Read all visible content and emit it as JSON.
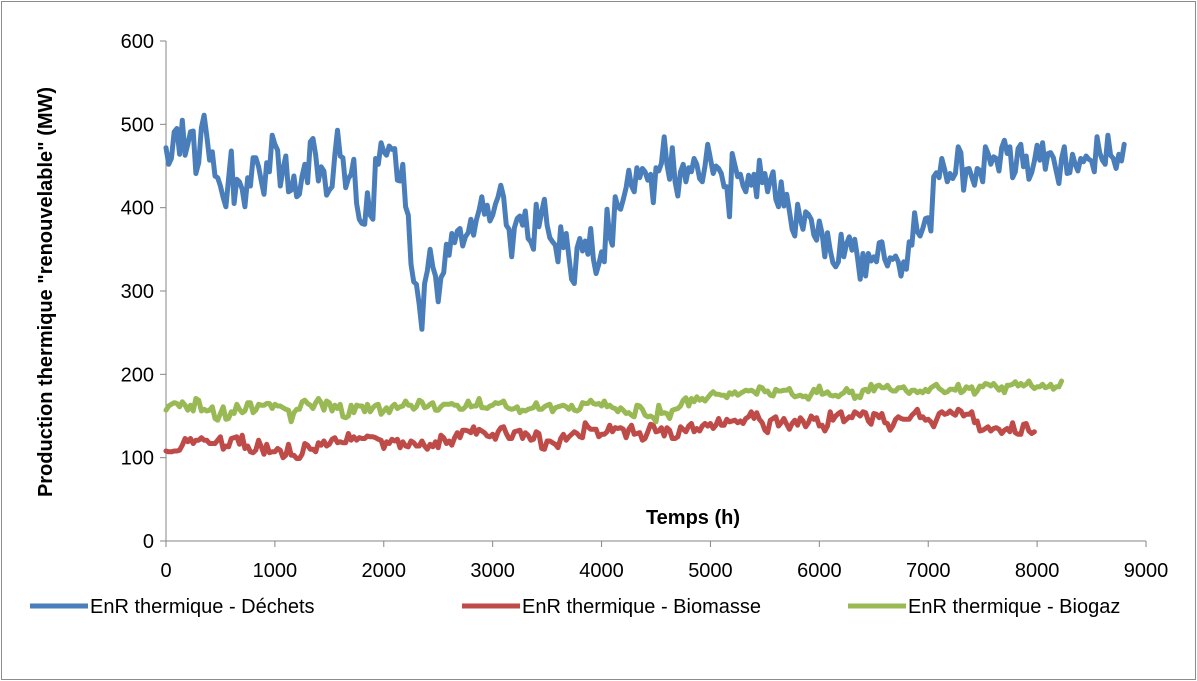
{
  "chart_data": {
    "type": "line",
    "title": "",
    "xlabel": "Temps (h)",
    "ylabel": "Production thermique \"renouvelable\" (MW)",
    "xlim": [
      0,
      9000
    ],
    "ylim": [
      0,
      600
    ],
    "x_ticks": [
      "0",
      "1000",
      "2000",
      "3000",
      "4000",
      "5000",
      "6000",
      "7000",
      "8000",
      "9000"
    ],
    "y_ticks": [
      "0",
      "100",
      "200",
      "300",
      "400",
      "500",
      "600"
    ],
    "grid": false,
    "legend_position": "bottom",
    "x_sampled_every": 25,
    "series": [
      {
        "name": "EnR thermique - Déchets",
        "color": "#4a7ebb",
        "values": [
          472,
          452,
          459,
          491,
          495,
          464,
          505,
          463,
          476,
          491,
          492,
          441,
          454,
          496,
          511,
          486,
          457,
          467,
          438,
          436,
          426,
          412,
          401,
          435,
          468,
          405,
          434,
          431,
          422,
          401,
          436,
          426,
          460,
          460,
          449,
          432,
          416,
          454,
          443,
          487,
          476,
          469,
          426,
          447,
          462,
          419,
          421,
          438,
          413,
          416,
          438,
          452,
          430,
          479,
          483,
          463,
          432,
          449,
          444,
          415,
          421,
          425,
          463,
          493,
          462,
          460,
          424,
          435,
          440,
          458,
          405,
          386,
          381,
          380,
          418,
          391,
          386,
          459,
          452,
          478,
          467,
          463,
          474,
          470,
          471,
          433,
          432,
          452,
          401,
          391,
          332,
          311,
          308,
          284,
          254,
          309,
          324,
          350,
          329,
          318,
          287,
          316,
          322,
          356,
          343,
          369,
          358,
          372,
          375,
          354,
          365,
          370,
          386,
          367,
          385,
          397,
          413,
          392,
          403,
          384,
          391,
          404,
          413,
          427,
          413,
          379,
          374,
          341,
          376,
          387,
          390,
          379,
          396,
          363,
          359,
          350,
          404,
          377,
          395,
          410,
          379,
          364,
          359,
          355,
          335,
          377,
          352,
          369,
          341,
          314,
          309,
          352,
          363,
          348,
          360,
          344,
          375,
          338,
          321,
          332,
          347,
          335,
          398,
          365,
          355,
          413,
          401,
          398,
          410,
          424,
          445,
          426,
          419,
          448,
          436,
          447,
          443,
          433,
          440,
          406,
          448,
          444,
          453,
          485,
          452,
          434,
          472,
          431,
          414,
          443,
          452,
          431,
          448,
          443,
          459,
          452,
          435,
          431,
          450,
          476,
          459,
          441,
          450,
          447,
          441,
          425,
          425,
          389,
          465,
          451,
          437,
          440,
          426,
          419,
          439,
          427,
          440,
          413,
          457,
          430,
          441,
          419,
          433,
          443,
          410,
          401,
          431,
          402,
          416,
          396,
          374,
          366,
          404,
          386,
          374,
          395,
          392,
          386,
          367,
          361,
          384,
          369,
          341,
          370,
          349,
          334,
          329,
          335,
          368,
          341,
          357,
          365,
          349,
          362,
          341,
          314,
          345,
          318,
          345,
          336,
          341,
          335,
          358,
          359,
          338,
          330,
          340,
          338,
          342,
          335,
          318,
          335,
          326,
          359,
          355,
          394,
          371,
          366,
          375,
          387,
          388,
          372,
          437,
          442,
          436,
          459,
          446,
          431,
          441,
          435,
          441,
          473,
          466,
          421,
          446,
          447,
          437,
          427,
          447,
          445,
          431,
          473,
          465,
          452,
          461,
          459,
          444,
          472,
          481,
          465,
          473,
          436,
          443,
          471,
          476,
          449,
          462,
          434,
          442,
          456,
          475,
          457,
          478,
          446,
          465,
          466,
          460,
          444,
          429,
          459,
          473,
          441,
          442,
          464,
          452,
          444,
          459,
          455,
          462,
          458,
          456,
          443,
          485,
          466,
          457,
          452,
          487,
          463,
          459,
          447,
          464,
          456,
          476
        ]
      },
      {
        "name": "EnR thermique - Biomasse",
        "color": "#be4b48",
        "values": [
          108,
          107,
          107,
          108,
          108,
          109,
          115,
          123,
          119,
          123,
          117,
          121,
          121,
          124,
          121,
          121,
          117,
          117,
          117,
          121,
          125,
          110,
          114,
          113,
          123,
          124,
          125,
          116,
          127,
          111,
          114,
          107,
          106,
          109,
          121,
          113,
          104,
          116,
          106,
          107,
          107,
          111,
          109,
          100,
          103,
          116,
          103,
          103,
          99,
          99,
          104,
          117,
          115,
          110,
          110,
          107,
          118,
          115,
          120,
          114,
          116,
          122,
          124,
          118,
          119,
          118,
          118,
          129,
          121,
          125,
          121,
          124,
          123,
          123,
          126,
          125,
          125,
          124,
          122,
          121,
          111,
          119,
          117,
          122,
          120,
          122,
          112,
          119,
          114,
          113,
          120,
          118,
          114,
          114,
          120,
          114,
          110,
          116,
          113,
          119,
          112,
          127,
          124,
          117,
          120,
          115,
          124,
          130,
          124,
          133,
          133,
          132,
          130,
          137,
          128,
          134,
          132,
          130,
          126,
          125,
          128,
          122,
          131,
          136,
          137,
          129,
          123,
          123,
          131,
          132,
          133,
          123,
          130,
          127,
          121,
          122,
          131,
          129,
          111,
          110,
          120,
          120,
          118,
          116,
          112,
          123,
          128,
          121,
          125,
          128,
          131,
          129,
          125,
          124,
          142,
          137,
          134,
          134,
          134,
          125,
          128,
          128,
          131,
          139,
          131,
          136,
          135,
          136,
          134,
          124,
          134,
          139,
          128,
          129,
          130,
          121,
          123,
          131,
          140,
          139,
          131,
          132,
          136,
          126,
          136,
          133,
          123,
          123,
          125,
          137,
          134,
          131,
          138,
          141,
          131,
          135,
          132,
          138,
          141,
          138,
          141,
          135,
          139,
          147,
          139,
          139,
          146,
          143,
          144,
          145,
          142,
          144,
          141,
          147,
          149,
          155,
          147,
          154,
          146,
          142,
          133,
          130,
          145,
          147,
          149,
          138,
          142,
          147,
          140,
          134,
          141,
          145,
          139,
          148,
          144,
          137,
          142,
          150,
          146,
          148,
          138,
          139,
          132,
          138,
          155,
          145,
          150,
          153,
          155,
          143,
          146,
          149,
          148,
          155,
          153,
          150,
          155,
          154,
          144,
          140,
          153,
          152,
          148,
          153,
          142,
          141,
          133,
          138,
          146,
          149,
          147,
          146,
          146,
          146,
          151,
          154,
          158,
          148,
          149,
          145,
          146,
          143,
          137,
          145,
          153,
          155,
          152,
          153,
          156,
          153,
          151,
          158,
          156,
          150,
          152,
          152,
          155,
          142,
          144,
          132,
          133,
          135,
          137,
          132,
          135,
          136,
          134,
          129,
          133,
          135,
          131,
          142,
          130,
          128,
          128,
          140,
          141,
          132,
          129,
          131
        ]
      },
      {
        "name": "EnR thermique - Biogaz",
        "color": "#98b954",
        "values": [
          157,
          162,
          164,
          166,
          165,
          161,
          167,
          163,
          157,
          163,
          156,
          171,
          169,
          156,
          158,
          156,
          157,
          161,
          147,
          145,
          153,
          161,
          146,
          147,
          155,
          153,
          164,
          158,
          154,
          156,
          166,
          166,
          154,
          157,
          164,
          163,
          163,
          165,
          165,
          159,
          164,
          162,
          162,
          160,
          158,
          157,
          143,
          154,
          158,
          158,
          167,
          169,
          165,
          163,
          159,
          166,
          171,
          166,
          157,
          168,
          166,
          156,
          163,
          159,
          164,
          149,
          148,
          150,
          163,
          154,
          163,
          162,
          162,
          155,
          164,
          155,
          160,
          163,
          164,
          152,
          156,
          160,
          154,
          161,
          164,
          159,
          161,
          162,
          168,
          163,
          163,
          158,
          161,
          169,
          167,
          160,
          161,
          164,
          166,
          157,
          157,
          161,
          164,
          164,
          164,
          165,
          163,
          163,
          158,
          158,
          161,
          168,
          161,
          162,
          162,
          171,
          160,
          160,
          159,
          162,
          163,
          166,
          165,
          166,
          168,
          161,
          159,
          158,
          159,
          161,
          154,
          157,
          156,
          158,
          159,
          160,
          166,
          158,
          158,
          161,
          163,
          164,
          155,
          160,
          161,
          162,
          163,
          161,
          158,
          163,
          157,
          156,
          158,
          166,
          165,
          165,
          169,
          165,
          164,
          165,
          162,
          168,
          161,
          163,
          160,
          159,
          155,
          160,
          157,
          153,
          154,
          151,
          149,
          163,
          162,
          158,
          151,
          149,
          150,
          148,
          143,
          163,
          153,
          154,
          153,
          147,
          157,
          158,
          159,
          162,
          169,
          172,
          162,
          171,
          167,
          173,
          169,
          171,
          168,
          172,
          176,
          179,
          176,
          176,
          175,
          175,
          172,
          178,
          176,
          179,
          175,
          177,
          179,
          181,
          180,
          181,
          179,
          176,
          185,
          184,
          179,
          180,
          175,
          174,
          182,
          180,
          180,
          181,
          181,
          183,
          176,
          173,
          174,
          175,
          173,
          174,
          170,
          176,
          182,
          178,
          186,
          176,
          177,
          179,
          175,
          174,
          175,
          173,
          176,
          178,
          183,
          178,
          180,
          171,
          174,
          172,
          181,
          182,
          179,
          188,
          180,
          186,
          187,
          184,
          184,
          187,
          182,
          180,
          180,
          184,
          184,
          185,
          180,
          177,
          181,
          181,
          178,
          180,
          178,
          182,
          179,
          184,
          186,
          188,
          183,
          181,
          178,
          179,
          182,
          182,
          181,
          188,
          178,
          180,
          185,
          183,
          185,
          176,
          180,
          186,
          185,
          189,
          188,
          186,
          189,
          185,
          181,
          185,
          178,
          187,
          187,
          188,
          191,
          186,
          189,
          186,
          188,
          192,
          186,
          183,
          185,
          185,
          188,
          184,
          185,
          188,
          182,
          185,
          185,
          192
        ]
      }
    ]
  }
}
